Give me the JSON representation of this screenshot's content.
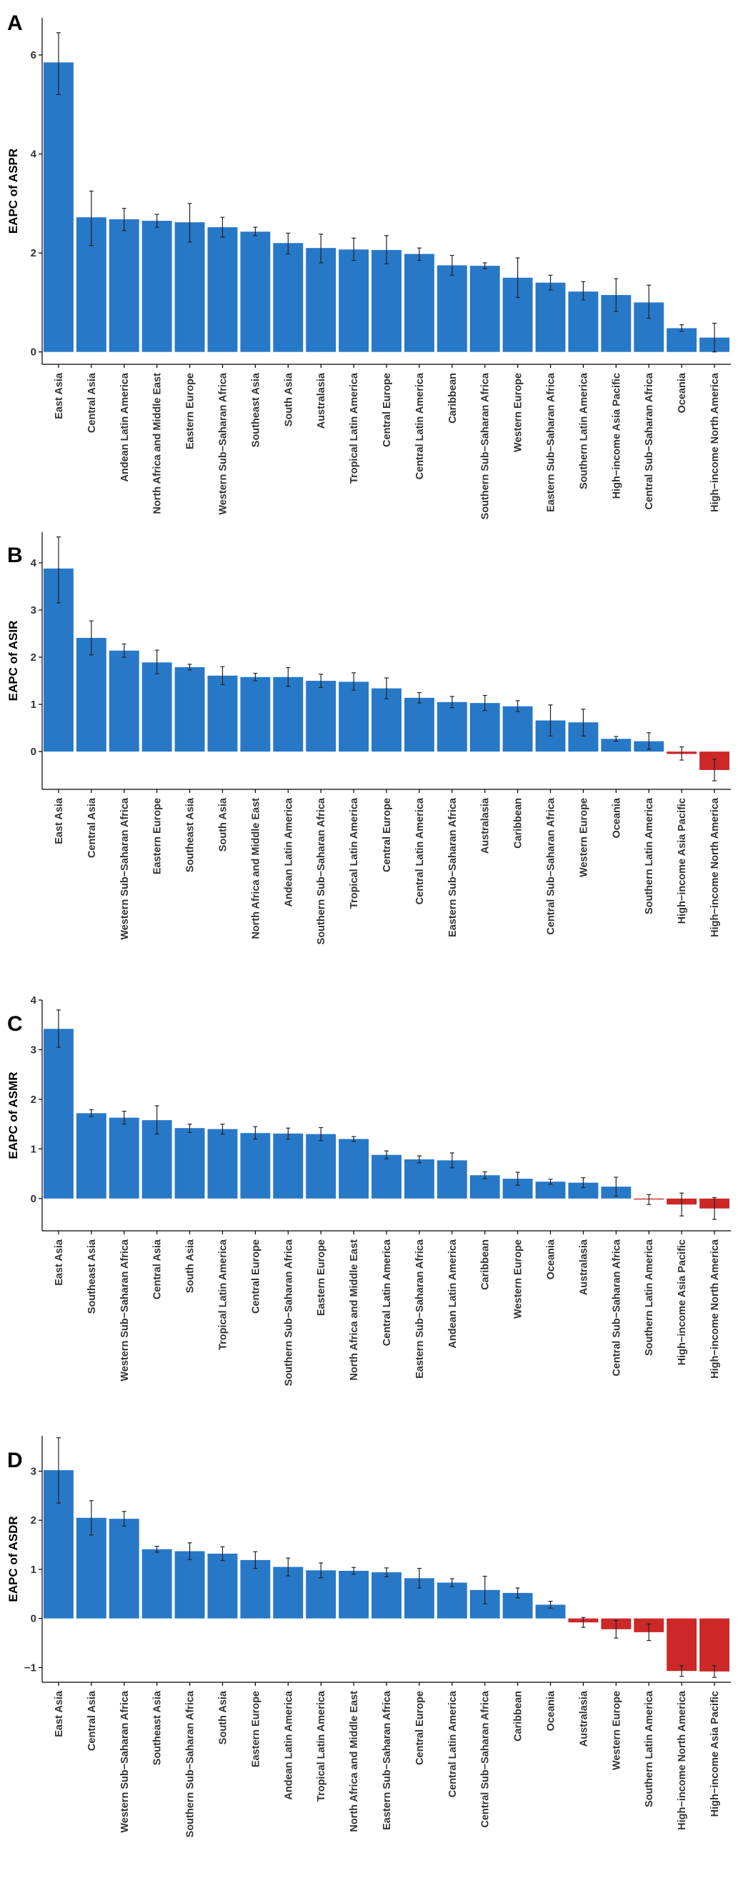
{
  "chart_data": [
    {
      "panel_label": "A",
      "type": "bar",
      "ylabel": "EAPC of ASPR",
      "xlabel": "",
      "ylim": [
        -0.25,
        6.75
      ],
      "yticks": [
        0,
        2,
        4,
        6
      ],
      "categories": [
        "East Asia",
        "Central Asia",
        "Andean Latin America",
        "North Africa and Middle East",
        "Eastern Europe",
        "Western Sub−Saharan Africa",
        "Southeast Asia",
        "South Asia",
        "Australasia",
        "Tropical Latin America",
        "Central Europe",
        "Central Latin America",
        "Caribbean",
        "Southern Sub−Saharan Africa",
        "Western Europe",
        "Eastern Sub−Saharan Africa",
        "Southern Latin America",
        "High−income Asia Pacific",
        "Central Sub−Saharan Africa",
        "Oceania",
        "High−income North America"
      ],
      "values": [
        5.85,
        2.72,
        2.68,
        2.65,
        2.62,
        2.52,
        2.43,
        2.2,
        2.1,
        2.07,
        2.06,
        1.98,
        1.75,
        1.74,
        1.5,
        1.4,
        1.22,
        1.15,
        1.0,
        0.48,
        0.29
      ],
      "error_lower": [
        5.2,
        2.15,
        2.45,
        2.52,
        2.22,
        2.32,
        2.35,
        1.98,
        1.8,
        1.85,
        1.78,
        1.85,
        1.55,
        1.68,
        1.1,
        1.25,
        1.05,
        0.82,
        0.68,
        0.42,
        0.0
      ],
      "error_upper": [
        6.45,
        3.25,
        2.9,
        2.78,
        3.0,
        2.72,
        2.52,
        2.4,
        2.38,
        2.3,
        2.35,
        2.1,
        1.95,
        1.8,
        1.9,
        1.55,
        1.42,
        1.48,
        1.35,
        0.55,
        0.58
      ],
      "colors": {
        "positive": "#2878c8",
        "negative": "#cc2828",
        "error_bar": "#222222"
      }
    },
    {
      "panel_label": "B",
      "type": "bar",
      "ylabel": "EAPC of ASIR",
      "xlabel": "",
      "ylim": [
        -0.8,
        4.65
      ],
      "yticks": [
        0,
        1,
        2,
        3,
        4
      ],
      "categories": [
        "East Asia",
        "Central Asia",
        "Western Sub−Saharan Africa",
        "Eastern Europe",
        "Southeast Asia",
        "South Asia",
        "North Africa and Middle East",
        "Andean Latin America",
        "Southern Sub−Saharan Africa",
        "Tropical Latin America",
        "Central Europe",
        "Central Latin America",
        "Eastern Sub−Saharan Africa",
        "Australasia",
        "Caribbean",
        "Central Sub−Saharan Africa",
        "Western Europe",
        "Oceania",
        "Southern Latin America",
        "High−income Asia Pacific",
        "High−income North America"
      ],
      "values": [
        3.88,
        2.41,
        2.14,
        1.89,
        1.79,
        1.61,
        1.58,
        1.58,
        1.5,
        1.48,
        1.34,
        1.14,
        1.05,
        1.03,
        0.96,
        0.66,
        0.62,
        0.27,
        0.22,
        -0.05,
        -0.39
      ],
      "error_lower": [
        3.15,
        2.05,
        2.0,
        1.65,
        1.73,
        1.42,
        1.5,
        1.38,
        1.36,
        1.3,
        1.12,
        1.03,
        0.93,
        0.87,
        0.85,
        0.33,
        0.33,
        0.22,
        0.05,
        -0.18,
        -0.62
      ],
      "error_upper": [
        4.55,
        2.77,
        2.28,
        2.15,
        1.85,
        1.8,
        1.66,
        1.78,
        1.64,
        1.67,
        1.56,
        1.25,
        1.17,
        1.19,
        1.08,
        0.99,
        0.9,
        0.32,
        0.4,
        0.1,
        -0.16
      ],
      "colors": {
        "positive": "#2878c8",
        "negative": "#cc2828",
        "error_bar": "#222222"
      }
    },
    {
      "panel_label": "C",
      "type": "bar",
      "ylabel": "EAPC of ASMR",
      "xlabel": "",
      "ylim": [
        -0.65,
        4.0
      ],
      "yticks": [
        0,
        1,
        2,
        3,
        4
      ],
      "categories": [
        "East Asia",
        "Southeast Asia",
        "Western Sub−Saharan Africa",
        "Central Asia",
        "South Asia",
        "Tropical Latin America",
        "Central Europe",
        "Southern Sub−Saharan Africa",
        "Eastern Europe",
        "North Africa and Middle East",
        "Central Latin America",
        "Eastern Sub−Saharan Africa",
        "Andean Latin America",
        "Caribbean",
        "Western Europe",
        "Oceania",
        "Australasia",
        "Central Sub−Saharan Africa",
        "Southern Latin America",
        "High−income Asia Pacific",
        "High−income North America"
      ],
      "values": [
        3.42,
        1.72,
        1.63,
        1.58,
        1.42,
        1.4,
        1.32,
        1.31,
        1.3,
        1.2,
        0.88,
        0.79,
        0.77,
        0.47,
        0.4,
        0.34,
        0.32,
        0.24,
        -0.02,
        -0.12,
        -0.2
      ],
      "error_lower": [
        3.05,
        1.65,
        1.5,
        1.3,
        1.33,
        1.3,
        1.2,
        1.2,
        1.17,
        1.15,
        0.8,
        0.72,
        0.62,
        0.4,
        0.27,
        0.29,
        0.22,
        0.05,
        -0.12,
        -0.35,
        -0.42
      ],
      "error_upper": [
        3.8,
        1.79,
        1.76,
        1.87,
        1.5,
        1.5,
        1.45,
        1.42,
        1.43,
        1.25,
        0.96,
        0.86,
        0.92,
        0.54,
        0.53,
        0.39,
        0.42,
        0.43,
        0.08,
        0.11,
        0.02
      ],
      "colors": {
        "positive": "#2878c8",
        "negative": "#cc2828",
        "error_bar": "#222222"
      }
    },
    {
      "panel_label": "D",
      "type": "bar",
      "ylabel": "EAPC of ASDR",
      "xlabel": "",
      "ylim": [
        -1.3,
        3.72
      ],
      "yticks": [
        -1,
        0,
        1,
        2,
        3
      ],
      "categories": [
        "East Asia",
        "Central Asia",
        "Western Sub−Saharan Africa",
        "Southeast Asia",
        "Southern Sub−Saharan Africa",
        "South Asia",
        "Eastern Europe",
        "Andean Latin America",
        "Tropical Latin America",
        "North Africa and Middle East",
        "Eastern Sub−Saharan Africa",
        "Central Europe",
        "Central Latin America",
        "Central Sub−Saharan Africa",
        "Caribbean",
        "Oceania",
        "Australasia",
        "Western Europe",
        "Southern Latin America",
        "High−income North America",
        "High−income Asia Pacific"
      ],
      "values": [
        3.02,
        2.05,
        2.03,
        1.41,
        1.37,
        1.32,
        1.19,
        1.05,
        0.98,
        0.97,
        0.94,
        0.82,
        0.73,
        0.58,
        0.52,
        0.28,
        -0.08,
        -0.22,
        -0.28,
        -1.07,
        -1.08
      ],
      "error_lower": [
        2.35,
        1.7,
        1.88,
        1.35,
        1.2,
        1.18,
        1.02,
        0.87,
        0.83,
        0.9,
        0.85,
        0.62,
        0.65,
        0.3,
        0.42,
        0.21,
        -0.18,
        -0.4,
        -0.45,
        -1.18,
        -1.2
      ],
      "error_upper": [
        3.68,
        2.4,
        2.18,
        1.47,
        1.54,
        1.46,
        1.36,
        1.23,
        1.13,
        1.04,
        1.03,
        1.02,
        0.81,
        0.86,
        0.62,
        0.35,
        0.02,
        -0.04,
        -0.11,
        -0.96,
        -0.96
      ],
      "colors": {
        "positive": "#2878c8",
        "negative": "#cc2828",
        "error_bar": "#222222"
      }
    }
  ]
}
